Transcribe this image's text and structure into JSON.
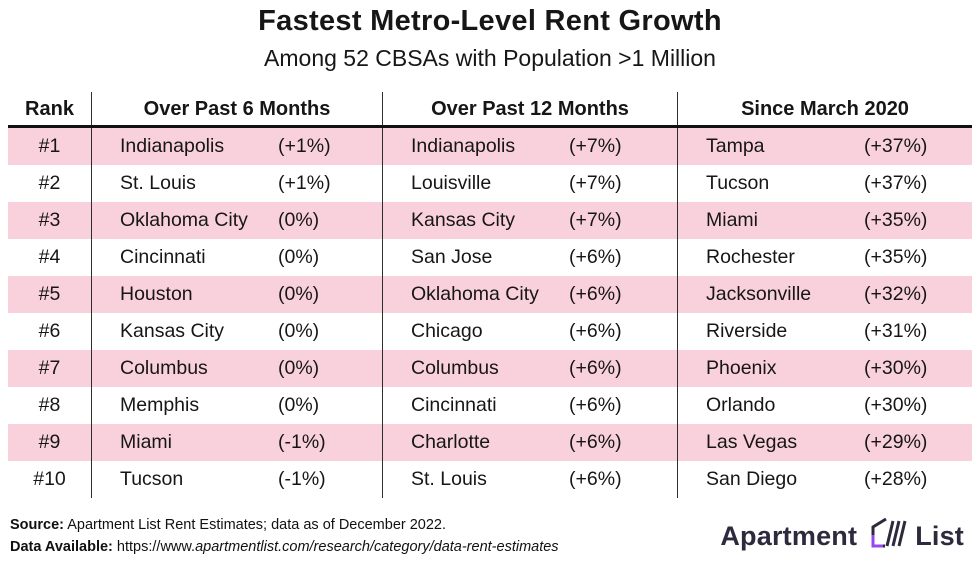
{
  "title": "Fastest Metro-Level Rent Growth",
  "subtitle": "Among 52 CBSAs with Population >1 Million",
  "table": {
    "headers": {
      "rank": "Rank",
      "col6mo": "Over Past 6 Months",
      "col12mo": "Over Past 12 Months",
      "colsince": "Since March 2020"
    },
    "rows": [
      {
        "rank": "#1",
        "m6_city": "Indianapolis",
        "m6_pct": "(+1%)",
        "m12_city": "Indianapolis",
        "m12_pct": "(+7%)",
        "since_city": "Tampa",
        "since_pct": "(+37%)"
      },
      {
        "rank": "#2",
        "m6_city": "St. Louis",
        "m6_pct": "(+1%)",
        "m12_city": "Louisville",
        "m12_pct": "(+7%)",
        "since_city": "Tucson",
        "since_pct": "(+37%)"
      },
      {
        "rank": "#3",
        "m6_city": "Oklahoma City",
        "m6_pct": "(0%)",
        "m12_city": "Kansas City",
        "m12_pct": "(+7%)",
        "since_city": "Miami",
        "since_pct": "(+35%)"
      },
      {
        "rank": "#4",
        "m6_city": "Cincinnati",
        "m6_pct": "(0%)",
        "m12_city": "San Jose",
        "m12_pct": "(+6%)",
        "since_city": "Rochester",
        "since_pct": "(+35%)"
      },
      {
        "rank": "#5",
        "m6_city": "Houston",
        "m6_pct": "(0%)",
        "m12_city": "Oklahoma City",
        "m12_pct": "(+6%)",
        "since_city": "Jacksonville",
        "since_pct": "(+32%)"
      },
      {
        "rank": "#6",
        "m6_city": "Kansas City",
        "m6_pct": "(0%)",
        "m12_city": "Chicago",
        "m12_pct": "(+6%)",
        "since_city": "Riverside",
        "since_pct": "(+31%)"
      },
      {
        "rank": "#7",
        "m6_city": "Columbus",
        "m6_pct": "(0%)",
        "m12_city": "Columbus",
        "m12_pct": "(+6%)",
        "since_city": "Phoenix",
        "since_pct": "(+30%)"
      },
      {
        "rank": "#8",
        "m6_city": "Memphis",
        "m6_pct": "(0%)",
        "m12_city": "Cincinnati",
        "m12_pct": "(+6%)",
        "since_city": "Orlando",
        "since_pct": "(+30%)"
      },
      {
        "rank": "#9",
        "m6_city": "Miami",
        "m6_pct": "(-1%)",
        "m12_city": "Charlotte",
        "m12_pct": "(+6%)",
        "since_city": "Las Vegas",
        "since_pct": "(+29%)"
      },
      {
        "rank": "#10",
        "m6_city": "Tucson",
        "m6_pct": "(-1%)",
        "m12_city": "St. Louis",
        "m12_pct": "(+6%)",
        "since_city": "San Diego",
        "since_pct": "(+28%)"
      }
    ]
  },
  "chart_data": {
    "type": "table",
    "title": "Fastest Metro-Level Rent Growth",
    "subtitle": "Among 52 CBSAs with Population >1 Million",
    "columns": [
      "Rank",
      "Over Past 6 Months",
      "Over Past 12 Months",
      "Since March 2020"
    ],
    "ranks": [
      "#1",
      "#2",
      "#3",
      "#4",
      "#5",
      "#6",
      "#7",
      "#8",
      "#9",
      "#10"
    ],
    "series": [
      {
        "name": "Over Past 6 Months",
        "cities": [
          "Indianapolis",
          "St. Louis",
          "Oklahoma City",
          "Cincinnati",
          "Houston",
          "Kansas City",
          "Columbus",
          "Memphis",
          "Miami",
          "Tucson"
        ],
        "pct_change": [
          1,
          1,
          0,
          0,
          0,
          0,
          0,
          0,
          -1,
          -1
        ]
      },
      {
        "name": "Over Past 12 Months",
        "cities": [
          "Indianapolis",
          "Louisville",
          "Kansas City",
          "San Jose",
          "Oklahoma City",
          "Chicago",
          "Columbus",
          "Cincinnati",
          "Charlotte",
          "St. Louis"
        ],
        "pct_change": [
          7,
          7,
          7,
          6,
          6,
          6,
          6,
          6,
          6,
          6
        ]
      },
      {
        "name": "Since March 2020",
        "cities": [
          "Tampa",
          "Tucson",
          "Miami",
          "Rochester",
          "Jacksonville",
          "Riverside",
          "Phoenix",
          "Orlando",
          "Las Vegas",
          "San Diego"
        ],
        "pct_change": [
          37,
          37,
          35,
          35,
          32,
          31,
          30,
          30,
          29,
          28
        ]
      }
    ]
  },
  "footer": {
    "source_label": "Source:",
    "source_text": " Apartment List Rent Estimates; data as of December 2022.",
    "data_label": "Data Available:",
    "url_prefix": " https://www.",
    "url_rest": "apartmentlist.com/research/category/data-rent-estimates",
    "logo": {
      "word1": "Apartment",
      "word2": "List"
    }
  },
  "colors": {
    "row_pink": "#f9d1dd",
    "ink": "#161616",
    "logo_dark": "#2d2a3e",
    "logo_purple": "#9546f0"
  }
}
